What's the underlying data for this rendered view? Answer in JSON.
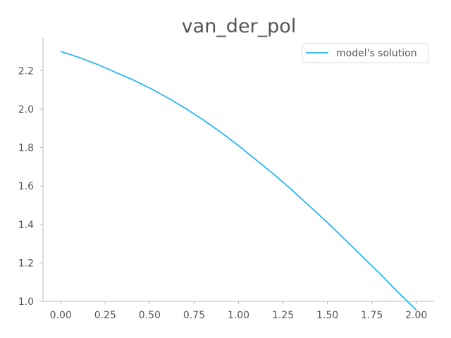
{
  "chart_data": {
    "type": "line",
    "title": "van_der_pol",
    "xlabel": "",
    "ylabel": "",
    "xlim": [
      -0.1,
      2.1
    ],
    "ylim": [
      1.0,
      2.37
    ],
    "xticks": [
      0.0,
      0.25,
      0.5,
      0.75,
      1.0,
      1.25,
      1.5,
      1.75,
      2.0
    ],
    "xtick_labels": [
      "0.00",
      "0.25",
      "0.50",
      "0.75",
      "1.00",
      "1.25",
      "1.50",
      "1.75",
      "2.00"
    ],
    "yticks": [
      1.0,
      1.2,
      1.4,
      1.6,
      1.8,
      2.0,
      2.2
    ],
    "ytick_labels": [
      "1.0",
      "1.2",
      "1.4",
      "1.6",
      "1.8",
      "2.0",
      "2.2"
    ],
    "grid": false,
    "legend_position": "top-right",
    "series": [
      {
        "name": "model's solution",
        "color": "#29b6f6",
        "x": [
          0.0,
          0.1,
          0.2,
          0.3,
          0.4,
          0.5,
          0.6,
          0.7,
          0.8,
          0.9,
          1.0,
          1.1,
          1.2,
          1.3,
          1.4,
          1.5,
          1.6,
          1.7,
          1.8,
          1.9,
          2.0
        ],
        "y": [
          2.3,
          2.27,
          2.235,
          2.195,
          2.155,
          2.11,
          2.06,
          2.005,
          1.945,
          1.88,
          1.81,
          1.735,
          1.66,
          1.58,
          1.495,
          1.41,
          1.32,
          1.23,
          1.14,
          1.045,
          0.955
        ]
      }
    ]
  }
}
